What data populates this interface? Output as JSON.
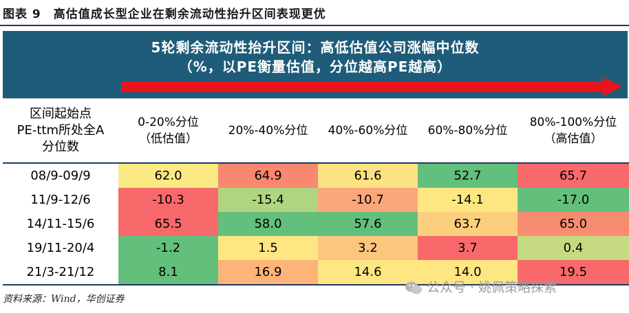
{
  "figure_title": "图表 9　高估值成长型企业在剩余流动性抬升区间表现更优",
  "banner": {
    "line1": "5轮剩余流动性抬升区间：高低估值公司涨幅中位数",
    "line2": "（%，以PE衡量估值，分位越高PE越高）",
    "arrow_color": "#e8141b",
    "background": "#1f5c7a"
  },
  "chart_data": {
    "type": "heatmap",
    "title": "5轮剩余流动性抬升区间：高低估值公司涨幅中位数",
    "subtitle": "（%，以PE衡量估值，分位越高PE越高）",
    "row_header_title": [
      "区间起始点",
      "PE-ttm所处全A",
      "分位数"
    ],
    "columns": [
      [
        "0-20%分位",
        "（低估值）"
      ],
      [
        "20%-40%分位"
      ],
      [
        "40%-60%分位"
      ],
      [
        "60%-80%分位"
      ],
      [
        "80%-100%分位",
        "（高估值）"
      ]
    ],
    "rows": [
      "08/9-09/9",
      "11/9-12/6",
      "14/11-15/6",
      "19/11-20/4",
      "21/3-21/12"
    ],
    "values": [
      [
        62.0,
        64.9,
        61.6,
        52.7,
        65.7
      ],
      [
        -10.3,
        -15.4,
        -10.7,
        -14.1,
        -17.0
      ],
      [
        65.5,
        58.0,
        57.6,
        63.7,
        65.0
      ],
      [
        -1.2,
        1.5,
        3.2,
        3.7,
        0.4
      ],
      [
        8.1,
        16.9,
        14.6,
        14.0,
        19.5
      ]
    ],
    "cell_colors": [
      [
        "#fbe983",
        "#f8886f",
        "#fde283",
        "#63bf7c",
        "#f8696b"
      ],
      [
        "#f8696b",
        "#b0d580",
        "#fba77b",
        "#fee783",
        "#63bf7c"
      ],
      [
        "#f8696b",
        "#63bf7c",
        "#63bf7c",
        "#fccf7f",
        "#f88c70"
      ],
      [
        "#63bf7c",
        "#fee783",
        "#fdc57d",
        "#f8696b",
        "#c6db81"
      ],
      [
        "#63bf7c",
        "#fcb479",
        "#fee783",
        "#fee683",
        "#f8696b"
      ]
    ],
    "color_scale": {
      "low": "#63bf7c",
      "mid": "#ffeb84",
      "high": "#f8696b",
      "scope": "per row"
    }
  },
  "source": "资料来源：Wind，华创证券",
  "watermark": "公众号 · 姚佩策略探索"
}
